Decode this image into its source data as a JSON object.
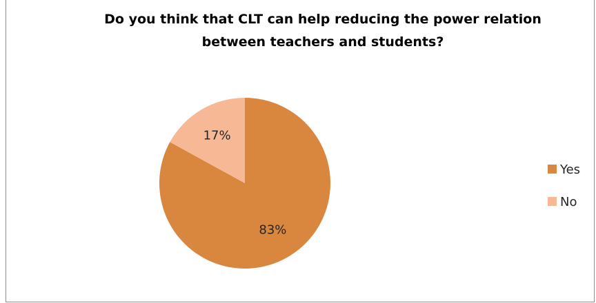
{
  "chart_data": {
    "type": "pie",
    "title_lines": [
      "Do you think that CLT can help reducing the power relation",
      "between teachers and students?"
    ],
    "categories": [
      "Yes",
      "No"
    ],
    "values": [
      83,
      17
    ],
    "data_labels": [
      "83%",
      "17%"
    ],
    "colors": [
      "#D9863F",
      "#F7B896"
    ],
    "legend_position": "right",
    "start_angle_deg": 0,
    "direction": "clockwise"
  }
}
